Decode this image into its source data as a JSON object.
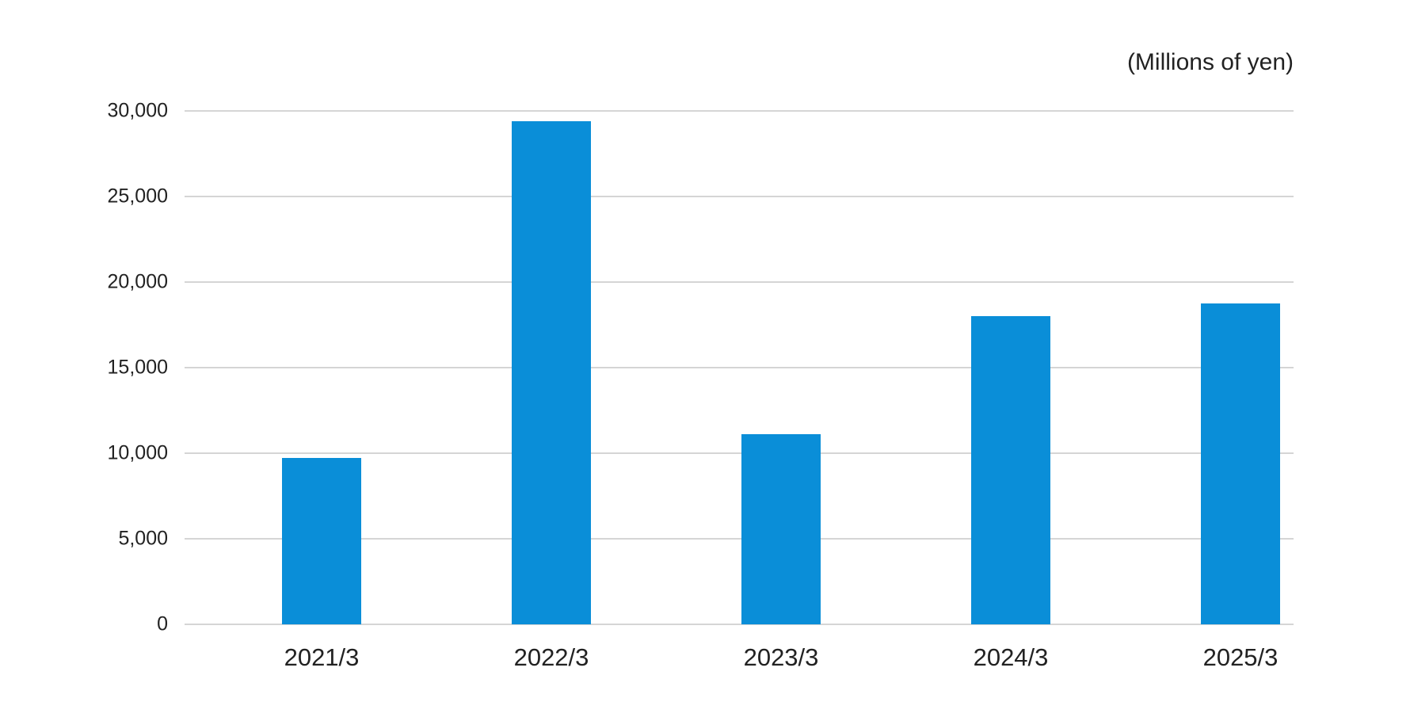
{
  "chart_data": {
    "type": "bar",
    "title": "",
    "unit_label": "(Millions of yen)",
    "xlabel": "",
    "ylabel": "",
    "categories": [
      "2021/3",
      "2022/3",
      "2023/3",
      "2024/3",
      "2025/3"
    ],
    "values": [
      9700,
      29400,
      11100,
      18000,
      18750
    ],
    "ylim": [
      0,
      30000
    ],
    "y_ticks": [
      {
        "value": 0,
        "label": "0"
      },
      {
        "value": 5000,
        "label": "5,000"
      },
      {
        "value": 10000,
        "label": "10,000"
      },
      {
        "value": 15000,
        "label": "15,000"
      },
      {
        "value": 20000,
        "label": "20,000"
      },
      {
        "value": 25000,
        "label": "25,000"
      },
      {
        "value": 30000,
        "label": "30,000"
      }
    ],
    "grid": true,
    "legend_position": "none",
    "colors": {
      "bar": "#0a8ed8",
      "gridline": "#d5d5d5",
      "text": "#222222",
      "background": "#ffffff"
    }
  }
}
